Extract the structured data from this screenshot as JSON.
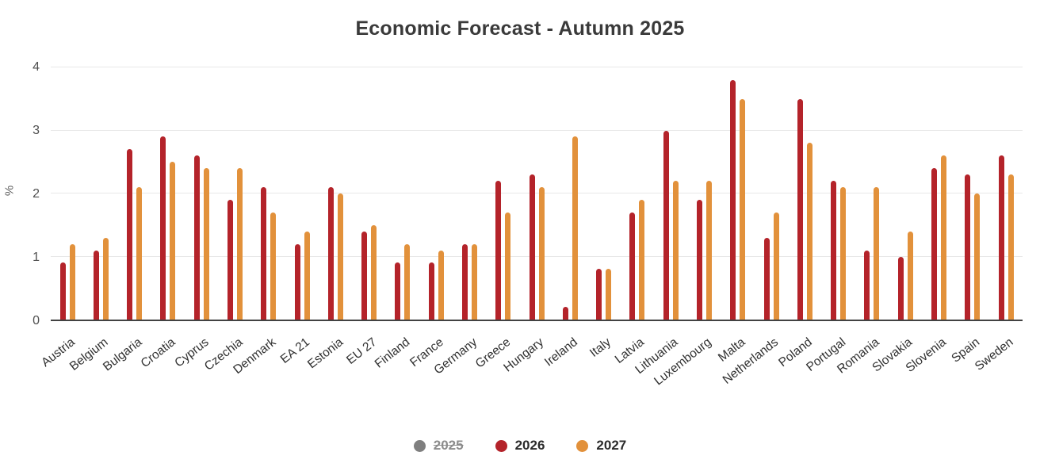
{
  "title": "Economic Forecast - Autumn 2025",
  "y_axis": {
    "label": "%",
    "ticks": [
      0,
      1,
      2,
      3,
      4
    ],
    "max": 4
  },
  "colors": {
    "series_2026": "#b4232a",
    "series_2027": "#e2913b",
    "legend_disabled_dot": "#7f7f7f",
    "grid": "#e8e8e8",
    "axis_line": "#424242",
    "title_text": "#3a3a3a"
  },
  "legend": [
    {
      "label": "2025",
      "dot_color": "#7f7f7f",
      "disabled": true
    },
    {
      "label": "2026",
      "dot_color": "#b4232a",
      "disabled": false
    },
    {
      "label": "2027",
      "dot_color": "#e2913b",
      "disabled": false
    }
  ],
  "chart_data": {
    "type": "bar",
    "title": "Economic Forecast - Autumn 2025",
    "xlabel": "",
    "ylabel": "%",
    "ylim": [
      0,
      4
    ],
    "grid": true,
    "legend_position": "bottom",
    "categories": [
      "Austria",
      "Belgium",
      "Bulgaria",
      "Croatia",
      "Cyprus",
      "Czechia",
      "Denmark",
      "EA 21",
      "Estonia",
      "EU 27",
      "Finland",
      "France",
      "Germany",
      "Greece",
      "Hungary",
      "Ireland",
      "Italy",
      "Latvia",
      "Lithuania",
      "Luxembourg",
      "Malta",
      "Netherlands",
      "Poland",
      "Portugal",
      "Romania",
      "Slovakia",
      "Slovenia",
      "Spain",
      "Sweden"
    ],
    "series": [
      {
        "name": "2026",
        "color": "#b4232a",
        "values": [
          0.9,
          1.1,
          2.7,
          2.9,
          2.6,
          1.9,
          2.1,
          1.2,
          2.1,
          1.4,
          0.9,
          0.9,
          1.2,
          2.2,
          2.3,
          0.2,
          0.8,
          1.7,
          3.0,
          1.9,
          3.8,
          1.3,
          3.5,
          2.2,
          1.1,
          1.0,
          2.4,
          2.3,
          2.6
        ]
      },
      {
        "name": "2027",
        "color": "#e2913b",
        "values": [
          1.2,
          1.3,
          2.1,
          2.5,
          2.4,
          2.4,
          1.7,
          1.4,
          2.0,
          1.5,
          1.2,
          1.1,
          1.2,
          1.7,
          2.1,
          2.9,
          0.8,
          1.9,
          2.2,
          2.2,
          3.5,
          1.7,
          2.8,
          2.1,
          2.1,
          1.4,
          2.6,
          2.0,
          2.3
        ]
      }
    ],
    "hidden_series": [
      "2025"
    ]
  }
}
